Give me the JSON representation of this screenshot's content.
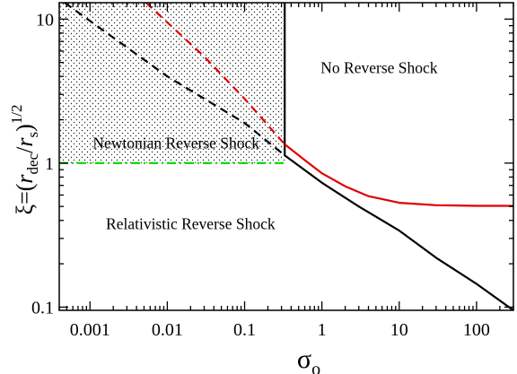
{
  "chart_data": {
    "type": "line",
    "xscale": "log",
    "yscale": "log",
    "xlim": [
      0.0004,
      300
    ],
    "ylim": [
      0.095,
      13
    ],
    "xlabel_symbol": "σ",
    "xlabel_sub": "o",
    "ylabel_parts": {
      "pre": "ξ=(",
      "r1": "r",
      "sub1": "dec",
      "slash": "/",
      "r2": "r",
      "sub2": "s",
      "post": ")",
      "exp": "1/2"
    },
    "x_ticks": [
      {
        "value": 0.001,
        "label": "0.001"
      },
      {
        "value": 0.01,
        "label": "0.01"
      },
      {
        "value": 0.1,
        "label": "0.1"
      },
      {
        "value": 1,
        "label": "1"
      },
      {
        "value": 10,
        "label": "10"
      },
      {
        "value": 100,
        "label": "100"
      }
    ],
    "y_ticks": [
      {
        "value": 0.1,
        "label": "0.1"
      },
      {
        "value": 1,
        "label": "1"
      },
      {
        "value": 10,
        "label": "10"
      }
    ],
    "annotations": [
      {
        "text": "No Reverse Shock",
        "x": 5.5,
        "y": 4.6
      },
      {
        "text": "Newtonian Reverse Shock",
        "x": 0.013,
        "y": 1.38
      },
      {
        "text": "Relativistic Reverse Shock",
        "x": 0.02,
        "y": 0.38
      }
    ],
    "shaded_region": {
      "pattern": "dots",
      "x": [
        0.0004,
        0.33
      ],
      "y": [
        1,
        13
      ]
    },
    "series": [
      {
        "id": "black-solid",
        "color": "#000000",
        "style": "solid",
        "points": [
          [
            0.33,
            13
          ],
          [
            0.33,
            1.13
          ],
          [
            1,
            0.73
          ],
          [
            3,
            0.5
          ],
          [
            10,
            0.34
          ],
          [
            30,
            0.22
          ],
          [
            100,
            0.145
          ],
          [
            300,
            0.095
          ]
        ]
      },
      {
        "id": "red-solid",
        "color": "#e00000",
        "style": "solid",
        "points": [
          [
            0.33,
            1.35
          ],
          [
            0.6,
            1.05
          ],
          [
            1,
            0.85
          ],
          [
            2,
            0.69
          ],
          [
            4,
            0.59
          ],
          [
            10,
            0.53
          ],
          [
            30,
            0.51
          ],
          [
            100,
            0.505
          ],
          [
            300,
            0.505
          ]
        ]
      },
      {
        "id": "black-dashed",
        "color": "#000000",
        "style": "dashed",
        "points": [
          [
            0.00047,
            13
          ],
          [
            0.01,
            4.0
          ],
          [
            0.1,
            1.9
          ],
          [
            0.33,
            1.13
          ]
        ]
      },
      {
        "id": "red-dashed",
        "color": "#e00000",
        "style": "dashed",
        "points": [
          [
            0.0053,
            13
          ],
          [
            0.03,
            5.5
          ],
          [
            0.1,
            2.8
          ],
          [
            0.33,
            1.35
          ]
        ]
      },
      {
        "id": "green-dashdot",
        "color": "#00dd00",
        "style": "dashdot",
        "points": [
          [
            0.0004,
            1
          ],
          [
            0.33,
            1
          ]
        ]
      }
    ]
  }
}
